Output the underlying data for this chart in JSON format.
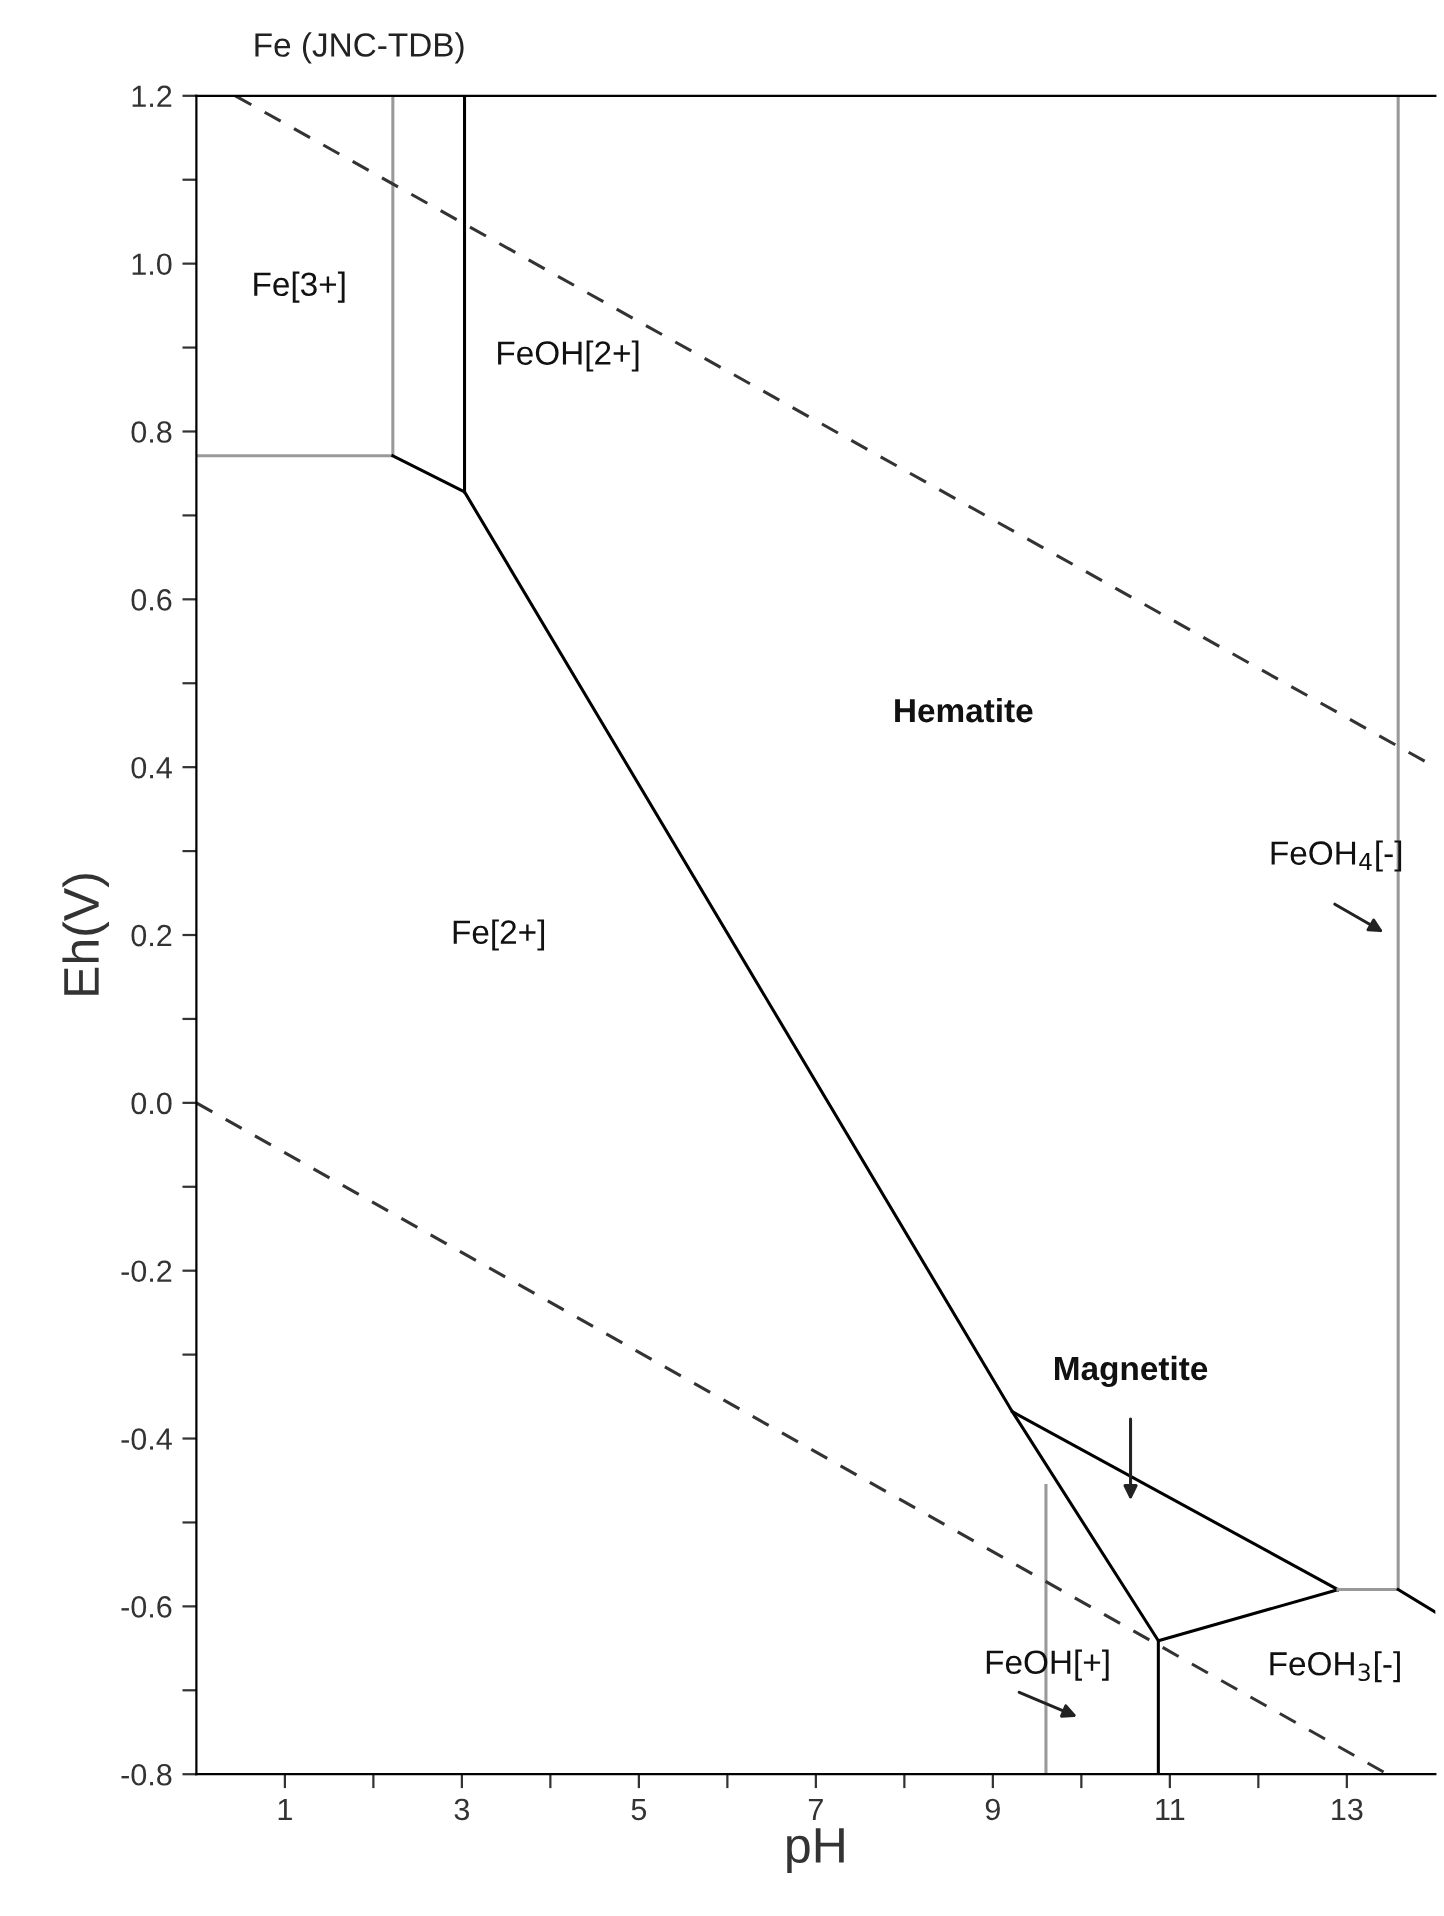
{
  "chart_data": {
    "type": "line",
    "title": "Fe (JNC-TDB)",
    "xlabel": "pH",
    "ylabel": "Eh(V)",
    "marker": "none",
    "grid": false,
    "xlim": [
      0,
      14
    ],
    "ylim": [
      -0.8,
      1.2
    ],
    "xticks": [
      1,
      {
        "value": 2,
        "label": null
      },
      3,
      {
        "value": 4,
        "label": null
      },
      5,
      {
        "value": 6,
        "label": null
      },
      7,
      {
        "value": 8,
        "label": null
      },
      9,
      {
        "value": 10,
        "label": null
      },
      11,
      {
        "value": 12,
        "label": null
      },
      13
    ],
    "yticks": [
      -0.8,
      {
        "value": -0.7,
        "label": null
      },
      -0.6,
      {
        "value": -0.5,
        "label": null
      },
      -0.4,
      {
        "value": -0.3,
        "label": null
      },
      -0.2,
      {
        "value": -0.1,
        "label": null
      },
      {
        "value": 0,
        "label": "0.0"
      },
      {
        "value": 0.1,
        "label": null
      },
      0.2,
      {
        "value": 0.3,
        "label": null
      },
      0.4,
      {
        "value": 0.5,
        "label": null
      },
      0.6,
      {
        "value": 0.7,
        "label": null
      },
      0.8,
      {
        "value": 0.9,
        "label": null
      },
      {
        "value": 1,
        "label": "1.0"
      },
      {
        "value": 1.1,
        "label": null
      },
      1.2
    ],
    "series": [
      {
        "color": "#999999",
        "x": [
          0,
          2.22,
          2.22
        ],
        "values": [
          0.771,
          0.771,
          1.2
        ]
      },
      {
        "color": "#000000",
        "x": [
          2.22,
          3.03,
          9.22,
          10.87,
          12.9
        ],
        "values": [
          0.771,
          0.728,
          -0.368,
          -0.641,
          -0.58
        ]
      },
      {
        "color": "#000000",
        "x": [
          3.03,
          3.03
        ],
        "values": [
          0.728,
          1.2
        ]
      },
      {
        "color": "#999999",
        "x": [
          9.6,
          9.6
        ],
        "values": [
          -0.8,
          -0.456
        ]
      },
      {
        "color": "#000000",
        "x": [
          10.87,
          10.87
        ],
        "values": [
          -0.8,
          -0.641
        ]
      },
      {
        "color": "#000000",
        "x": [
          9.22,
          12.9
        ],
        "values": [
          -0.368,
          -0.58
        ]
      },
      {
        "color": "#999999",
        "x": [
          12.9,
          13.58,
          13.58
        ],
        "values": [
          -0.58,
          -0.58,
          1.2
        ]
      },
      {
        "color": "#000000",
        "x": [
          13.58,
          14
        ],
        "values": [
          -0.58,
          -0.607
        ]
      },
      {
        "color": "#333333",
        "line_style": "dashed",
        "x": [
          0.44,
          14
        ],
        "values": [
          1.2,
          0.4
        ]
      },
      {
        "color": "#333333",
        "line_style": "dashed",
        "x": [
          0,
          13.46
        ],
        "values": [
          0,
          -0.8
        ]
      }
    ],
    "annotations": [
      "Fe[3+]",
      "FeOH[2+]",
      "Hematite",
      "Fe[2+]",
      "FeOH$_{4}$[-]",
      "Magnetite",
      "FeOH[+]",
      "FeOH$_{3}$[-]"
    ]
  }
}
